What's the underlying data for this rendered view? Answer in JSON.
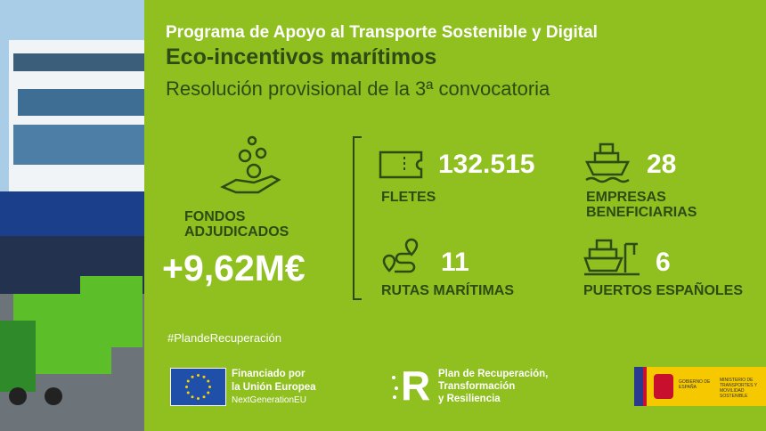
{
  "header": {
    "program": "Programa de Apoyo al Transporte Sostenible y Digital",
    "title": "Eco-incentivos marítimos",
    "subtitle": "Resolución provisional de la 3ª convocatoria"
  },
  "funds": {
    "label_line1": "FONDOS",
    "label_line2": "ADJUDICADOS",
    "value": "+9,62M€",
    "icon": "hand-coins-icon"
  },
  "stats": [
    {
      "value": "132.515",
      "label_line1": "FLETES",
      "label_line2": "",
      "icon": "ticket-icon"
    },
    {
      "value": "28",
      "label_line1": "EMPRESAS",
      "label_line2": "BENEFICIARIAS",
      "icon": "ship-icon"
    },
    {
      "value": "11",
      "label_line1": "RUTAS MARÍTIMAS",
      "label_line2": "",
      "icon": "route-icon"
    },
    {
      "value": "6",
      "label_line1": "PUERTOS ESPAÑOLES",
      "label_line2": "",
      "icon": "port-icon"
    }
  ],
  "hashtag": "#PlandeRecuperación",
  "logos": {
    "eu": {
      "line1": "Financiado por",
      "line2": "la Unión Europea",
      "line3": "NextGenerationEU"
    },
    "prtr": {
      "line1": "Plan de Recuperación,",
      "line2": "Transformación",
      "line3": "y Resiliencia"
    },
    "gov": {
      "left": "GOBIERNO DE ESPAÑA",
      "right": "MINISTERIO DE TRANSPORTES Y MOVILIDAD SOSTENIBLE"
    }
  },
  "colors": {
    "background": "#8fc020",
    "dark_text": "#2f4a14",
    "eu_blue": "#1f4fa8",
    "gov_yellow": "#f6c800"
  }
}
